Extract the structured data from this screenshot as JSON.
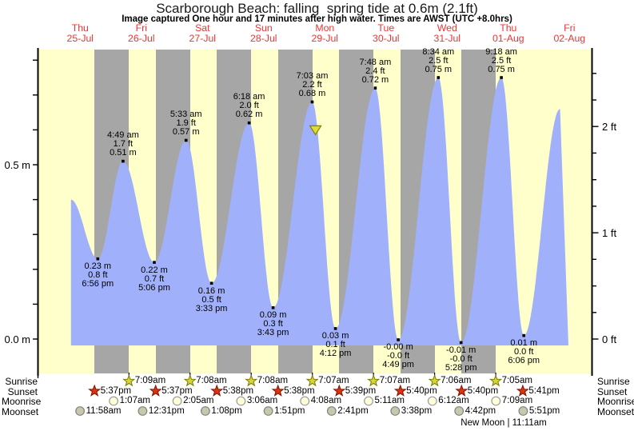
{
  "title": "Scarborough Beach: falling  spring tide at 0.6m (2.1ft)",
  "subtitle": "Image captured One hour and 17 minutes after high water. Times are AWST (UTC +8.0hrs)",
  "colors": {
    "day_bg": "#ffffcc",
    "night_bg": "#a6a6a6",
    "tide_fill": "#a0b0fa",
    "date_text": "#ee3333",
    "axis": "#000000",
    "sunrise_star_fill": "#d6d63a",
    "sunrise_star_border": "#7a7a00",
    "sunset_star_fill": "#dd3311",
    "sunset_star_border": "#7d1400",
    "moonrise_fill": "#ffffd9",
    "moonrise_border": "#999999",
    "moonset_fill": "#c8c8aa",
    "moonset_border": "#808080",
    "marker_fill": "#dcdc32",
    "marker_border": "#8a7a00"
  },
  "days": [
    {
      "name": "Thu",
      "date": "25-Jul"
    },
    {
      "name": "Fri",
      "date": "26-Jul"
    },
    {
      "name": "Sat",
      "date": "27-Jul"
    },
    {
      "name": "Sun",
      "date": "28-Jul"
    },
    {
      "name": "Mon",
      "date": "29-Jul"
    },
    {
      "name": "Tue",
      "date": "30-Jul"
    },
    {
      "name": "Wed",
      "date": "31-Jul"
    },
    {
      "name": "Thu",
      "date": "01-Aug"
    },
    {
      "name": "Fri",
      "date": "02-Aug"
    }
  ],
  "left_axis": {
    "unit": "m",
    "labels": [
      {
        "text": "0.5 m",
        "m": 0.5
      },
      {
        "text": "0.0 m",
        "m": 0.0
      }
    ],
    "tick_step_m": 0.1,
    "tick_min_m": 0.0,
    "tick_max_m": 0.8
  },
  "right_axis": {
    "unit": "ft",
    "labels": [
      {
        "text": "2 ft",
        "ft": 2
      },
      {
        "text": "1 ft",
        "ft": 1
      },
      {
        "text": "0 ft",
        "ft": 0
      }
    ],
    "tick_step_ft": 0.25,
    "tick_min_ft": 0.0,
    "tick_max_ft": 2.5
  },
  "chart_data": {
    "type": "area",
    "series_name": "tide height",
    "x_unit": "time, Thu 25-Jul through Fri 02-Aug",
    "y_unit_left": "m",
    "y_unit_right": "ft",
    "y_range_m": [
      -0.02,
      0.83
    ],
    "grid": false,
    "extremes": [
      {
        "day": 0,
        "type": "low",
        "time": "6:56 pm",
        "m": 0.23,
        "m_label": "0.23 m",
        "ft_label": "0.8 ft"
      },
      {
        "day": 1,
        "type": "high",
        "time": "4:49 am",
        "m": 0.51,
        "m_label": "0.51 m",
        "ft_label": "1.7 ft"
      },
      {
        "day": 1,
        "type": "low",
        "time": "5:06 pm",
        "m": 0.22,
        "m_label": "0.22 m",
        "ft_label": "0.7 ft"
      },
      {
        "day": 2,
        "type": "high",
        "time": "5:33 am",
        "m": 0.57,
        "m_label": "0.57 m",
        "ft_label": "1.9 ft"
      },
      {
        "day": 2,
        "type": "low",
        "time": "3:33 pm",
        "m": 0.16,
        "m_label": "0.16 m",
        "ft_label": "0.5 ft"
      },
      {
        "day": 3,
        "type": "high",
        "time": "6:18 am",
        "m": 0.62,
        "m_label": "0.62 m",
        "ft_label": "2.0 ft"
      },
      {
        "day": 3,
        "type": "low",
        "time": "3:43 pm",
        "m": 0.09,
        "m_label": "0.09 m",
        "ft_label": "0.3 ft"
      },
      {
        "day": 4,
        "type": "high",
        "time": "7:03 am",
        "m": 0.68,
        "m_label": "0.68 m",
        "ft_label": "2.2 ft"
      },
      {
        "day": 4,
        "type": "low",
        "time": "4:12 pm",
        "m": 0.03,
        "m_label": "0.03 m",
        "ft_label": "0.1 ft"
      },
      {
        "day": 5,
        "type": "high",
        "time": "7:48 am",
        "m": 0.72,
        "m_label": "0.72 m",
        "ft_label": "2.4 ft"
      },
      {
        "day": 5,
        "type": "low",
        "time": "4:49 pm",
        "m": -0.002,
        "m_label": "-0.00 m",
        "ft_label": "-0.0 ft"
      },
      {
        "day": 6,
        "type": "high",
        "time": "8:34 am",
        "m": 0.75,
        "m_label": "0.75 m",
        "ft_label": "2.5 ft"
      },
      {
        "day": 6,
        "type": "low",
        "time": "5:28 pm",
        "m": -0.01,
        "m_label": "-0.01 m",
        "ft_label": "-0.0 ft"
      },
      {
        "day": 7,
        "type": "high",
        "time": "9:18 am",
        "m": 0.75,
        "m_label": "0.75 m",
        "ft_label": "2.5 ft"
      },
      {
        "day": 7,
        "type": "low",
        "time": "6:06 pm",
        "m": 0.01,
        "m_label": "0.01 m",
        "ft_label": "0.0 ft"
      }
    ],
    "curve_start": {
      "t_hours": 8.4,
      "m": 0.4
    },
    "curve_end": {
      "t_hours": 200.3,
      "m": 0.66
    },
    "capture_marker": {
      "day": 4,
      "time": "8:20am",
      "m": 0.6
    }
  },
  "astro": {
    "row_labels": {
      "sunrise": "Sunrise",
      "sunset": "Sunset",
      "moonrise": "Moonrise",
      "moonset": "Moonset"
    },
    "sunrise": [
      {
        "day": 1,
        "time": "7:09am"
      },
      {
        "day": 2,
        "time": "7:08am"
      },
      {
        "day": 3,
        "time": "7:08am"
      },
      {
        "day": 4,
        "time": "7:07am"
      },
      {
        "day": 5,
        "time": "7:07am"
      },
      {
        "day": 6,
        "time": "7:06am"
      },
      {
        "day": 7,
        "time": "7:05am"
      }
    ],
    "sunset": [
      {
        "day": 0,
        "time": "5:37pm"
      },
      {
        "day": 1,
        "time": "5:37pm"
      },
      {
        "day": 2,
        "time": "5:38pm"
      },
      {
        "day": 3,
        "time": "5:38pm"
      },
      {
        "day": 4,
        "time": "5:39pm"
      },
      {
        "day": 5,
        "time": "5:40pm"
      },
      {
        "day": 6,
        "time": "5:40pm"
      },
      {
        "day": 7,
        "time": "5:41pm"
      }
    ],
    "moonrise": [
      {
        "day": 1,
        "time": "1:07am"
      },
      {
        "day": 2,
        "time": "2:05am"
      },
      {
        "day": 3,
        "time": "3:06am"
      },
      {
        "day": 4,
        "time": "4:08am"
      },
      {
        "day": 5,
        "time": "5:11am"
      },
      {
        "day": 6,
        "time": "6:12am"
      },
      {
        "day": 7,
        "time": "7:09am"
      }
    ],
    "moonset": [
      {
        "day": 0,
        "time": "11:58am"
      },
      {
        "day": 1,
        "time": "12:31pm"
      },
      {
        "day": 2,
        "time": "1:08pm"
      },
      {
        "day": 3,
        "time": "1:51pm"
      },
      {
        "day": 4,
        "time": "2:41pm"
      },
      {
        "day": 5,
        "time": "3:38pm"
      },
      {
        "day": 6,
        "time": "4:42pm"
      },
      {
        "day": 7,
        "time": "5:51pm"
      }
    ],
    "new_moon": "New Moon | 11:11am"
  }
}
